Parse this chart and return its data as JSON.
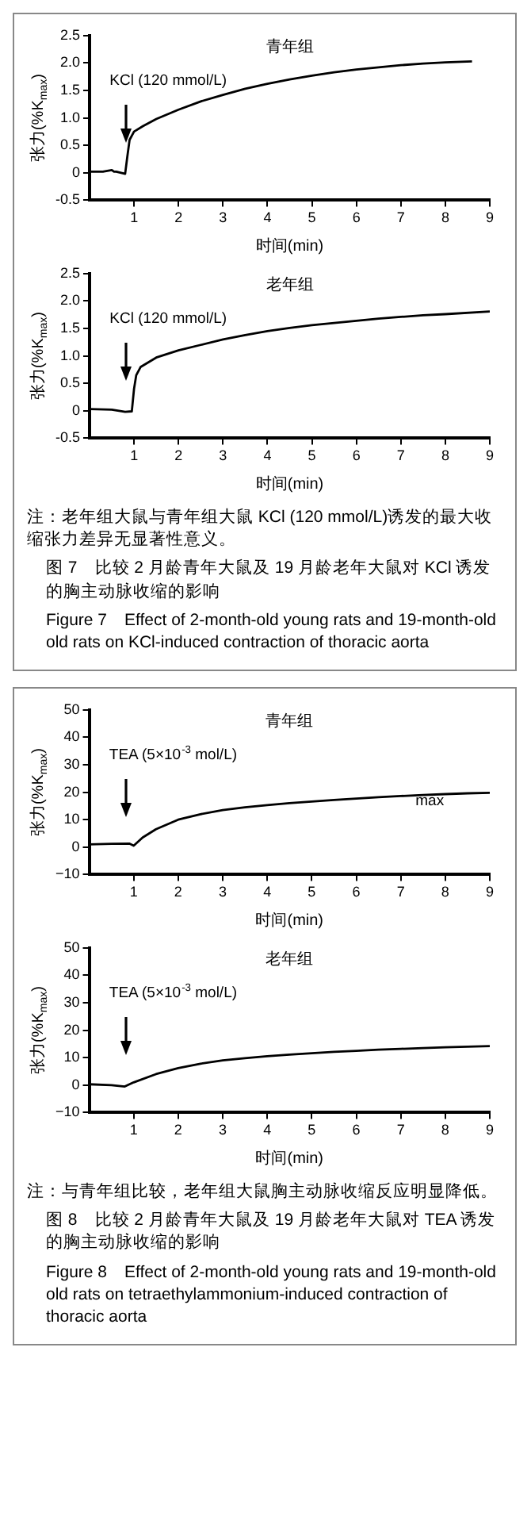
{
  "chart_data": [
    {
      "type": "line",
      "title": "青年组",
      "xlabel": "时间(min)",
      "ylabel": "张力(%K$_{max}$)",
      "xlim": [
        0,
        9
      ],
      "xticks": [
        1,
        2,
        3,
        4,
        5,
        6,
        7,
        8,
        9
      ],
      "ylim": [
        -0.5,
        2.5
      ],
      "yticks": [
        -0.5,
        0,
        0.5,
        {
          "value": 1,
          "label": "1.0"
        },
        1.5,
        {
          "value": 2,
          "label": "2.0"
        },
        2.5
      ],
      "grid": false,
      "legend": false,
      "marker": "none",
      "line_style": "solid",
      "x": [
        0,
        0.3,
        0.5,
        0.55,
        0.6,
        0.8,
        0.85,
        0.9,
        1.0,
        1.2,
        1.5,
        2,
        2.5,
        3,
        3.5,
        4,
        4.5,
        5,
        5.5,
        6,
        6.5,
        7,
        7.5,
        8,
        8.6
      ],
      "series": [
        {
          "color": "#000000",
          "values": [
            0.02,
            0.02,
            0.05,
            0.02,
            0.02,
            -0.02,
            0.3,
            0.6,
            0.75,
            0.85,
            0.98,
            1.15,
            1.3,
            1.42,
            1.53,
            1.62,
            1.7,
            1.77,
            1.83,
            1.88,
            1.92,
            1.96,
            1.99,
            2.01,
            2.03
          ]
        }
      ],
      "annotations": [
        "KCl (120 mmol/L)"
      ]
    },
    {
      "type": "line",
      "title": "老年组",
      "xlabel": "时间(min)",
      "ylabel": "张力(%K$_{max}$)",
      "xlim": [
        0,
        9
      ],
      "xticks": [
        1,
        2,
        3,
        4,
        5,
        6,
        7,
        8,
        9
      ],
      "ylim": [
        -0.5,
        2.5
      ],
      "yticks": [
        -0.5,
        0,
        0.5,
        {
          "value": 1,
          "label": "1.0"
        },
        1.5,
        {
          "value": 2,
          "label": "2.0"
        },
        2.5
      ],
      "grid": false,
      "legend": false,
      "marker": "none",
      "line_style": "solid",
      "x": [
        0,
        0.5,
        0.8,
        0.95,
        1.0,
        1.05,
        1.15,
        1.5,
        2,
        2.5,
        3,
        3.5,
        4,
        4.5,
        5,
        5.5,
        6,
        6.5,
        7,
        7.5,
        8,
        9
      ],
      "series": [
        {
          "color": "#000000",
          "values": [
            0.03,
            0.02,
            -0.02,
            -0.01,
            0.4,
            0.65,
            0.8,
            0.97,
            1.1,
            1.2,
            1.3,
            1.38,
            1.45,
            1.51,
            1.56,
            1.6,
            1.64,
            1.68,
            1.71,
            1.74,
            1.76,
            1.81
          ]
        }
      ],
      "annotations": [
        "KCl (120 mmol/L)",
        "注：老年组大鼠与青年组大鼠 KCl (120 mmol/L)诱发的最大收缩张力差异无显著性意义。",
        "图 7　比较 2 月龄青年大鼠及 19 月龄老年大鼠对 KCl 诱发的胸主动脉收缩的影响",
        "Figure 7　Effect of 2-month-old young rats and 19-month-old old rats on KCl-induced contraction of thoracic aorta"
      ]
    },
    {
      "type": "line",
      "title": "青年组",
      "xlabel": "时间(min)",
      "ylabel": "张力(%K$_{max}$)",
      "xlim": [
        0,
        9
      ],
      "xticks": [
        1,
        2,
        3,
        4,
        5,
        6,
        7,
        8,
        9
      ],
      "ylim": [
        -10,
        50
      ],
      "yticks": [
        {
          "value": -10,
          "label": "−10"
        },
        0,
        10,
        20,
        30,
        40,
        50
      ],
      "grid": false,
      "legend": false,
      "marker": "none",
      "line_style": "solid",
      "x": [
        0,
        0.5,
        0.9,
        1.0,
        1.2,
        1.5,
        2,
        2.5,
        3,
        3.5,
        4,
        4.5,
        5,
        5.5,
        6,
        6.5,
        7,
        7.5,
        8,
        8.5,
        9
      ],
      "series": [
        {
          "color": "#000000",
          "values": [
            1,
            1.2,
            1.3,
            0.5,
            3.5,
            6.5,
            10,
            12,
            13.5,
            14.5,
            15.3,
            16,
            16.6,
            17.2,
            17.7,
            18.2,
            18.6,
            19,
            19.3,
            19.6,
            19.8
          ]
        }
      ],
      "annotations": [
        "TEA (5×10$^{-3}$ mol/L)",
        "max"
      ]
    },
    {
      "type": "line",
      "title": "老年组",
      "xlabel": "时间(min)",
      "ylabel": "张力(%K$_{max}$)",
      "xlim": [
        0,
        9
      ],
      "xticks": [
        1,
        2,
        3,
        4,
        5,
        6,
        7,
        8,
        9
      ],
      "ylim": [
        -10,
        50
      ],
      "yticks": [
        {
          "value": -10,
          "label": "−10"
        },
        0,
        10,
        20,
        30,
        40,
        50
      ],
      "grid": false,
      "legend": false,
      "marker": "none",
      "line_style": "solid",
      "x": [
        0,
        0.5,
        0.8,
        1,
        1.5,
        2,
        2.5,
        3,
        3.5,
        4,
        4.5,
        5,
        5.5,
        6,
        6.5,
        7,
        7.5,
        8,
        8.5,
        9
      ],
      "series": [
        {
          "color": "#000000",
          "values": [
            0.3,
            0,
            -0.5,
            1,
            4,
            6.2,
            7.8,
            9,
            9.8,
            10.5,
            11.1,
            11.6,
            12.1,
            12.5,
            12.9,
            13.2,
            13.5,
            13.8,
            14,
            14.2
          ]
        }
      ],
      "annotations": [
        "TEA (5×10$^{-3}$ mol/L)",
        "注：与青年组比较，老年组大鼠胸主动脉收缩反应明显降低。",
        "图 8　比较 2 月龄青年大鼠及 19 月龄老年大鼠对 TEA 诱发的胸主动脉收缩的影响",
        "Figure 8　Effect of 2-month-old young rats and 19-month-old old rats on tetraethylammonium-induced contraction of thoracic aorta"
      ]
    }
  ]
}
